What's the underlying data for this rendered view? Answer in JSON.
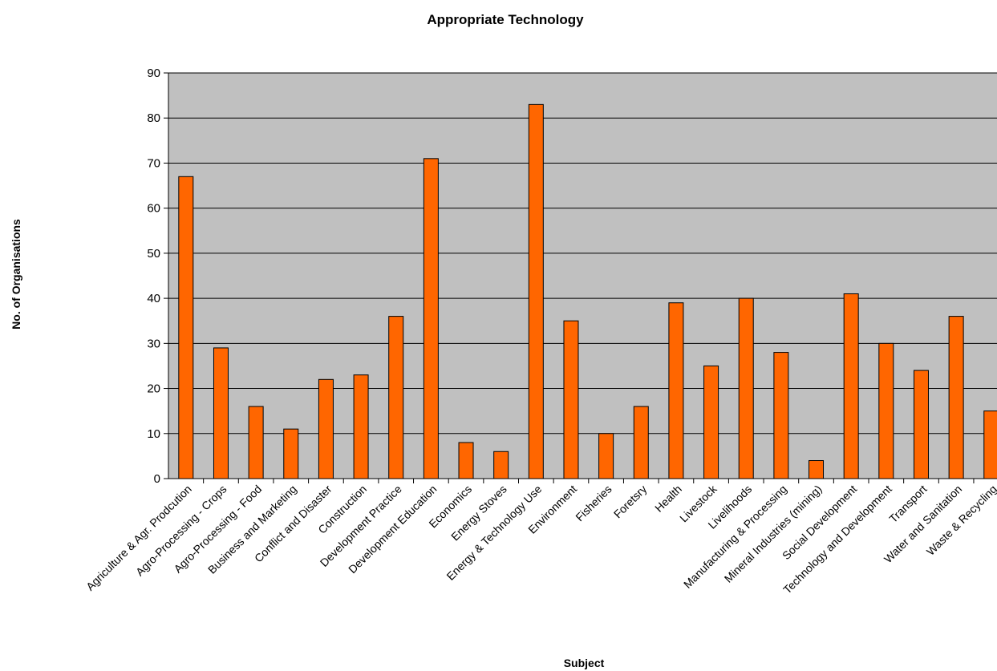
{
  "chart_data": {
    "type": "bar",
    "title": "Appropriate Technology",
    "xlabel": "Subject",
    "ylabel": "No. of Organisations",
    "ylim": [
      0,
      90
    ],
    "yticks": [
      0,
      10,
      20,
      30,
      40,
      50,
      60,
      70,
      80,
      90
    ],
    "grid": true,
    "plot_background": "#C0C0C0",
    "bar_color": "#FF6600",
    "categories": [
      "Agriculture & Agr. Prodcution",
      "Agro-Processing - Crops",
      "Agro-Processing - Food",
      "Business and Marketing",
      "Conflict and Disaster",
      "Construction",
      "Development Practice",
      "Development Education",
      "Economics",
      "Energy Stoves",
      "Energy & Technology Use",
      "Environment",
      "Fisheries",
      "Foretsry",
      "Health",
      "Livestock",
      "Livelihoods",
      "Manufacturing & Processing",
      "Mineral Industries (mining)",
      "Social Development",
      "Technology and Development",
      "Transport",
      "Water and Sanitation",
      "Waste & Recycling"
    ],
    "values": [
      67,
      29,
      16,
      11,
      22,
      23,
      36,
      71,
      8,
      6,
      83,
      35,
      10,
      16,
      39,
      25,
      40,
      28,
      4,
      41,
      30,
      24,
      36,
      15
    ]
  }
}
